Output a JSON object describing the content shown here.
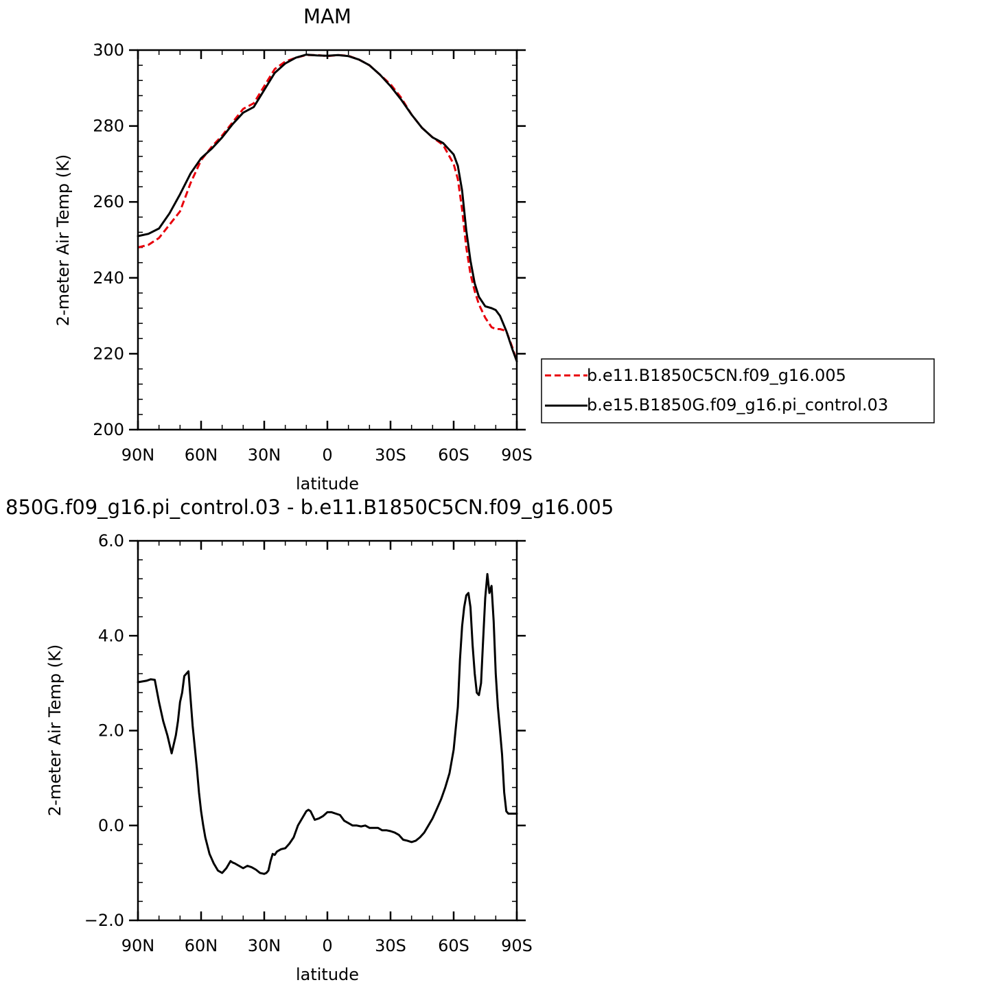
{
  "chart_data": [
    {
      "type": "line",
      "title": "MAM",
      "xlabel": "latitude",
      "ylabel": "2-meter Air Temp (K)",
      "xlim": [
        -90,
        90
      ],
      "ylim": [
        200,
        300
      ],
      "x_ticks": [
        {
          "value": -90,
          "label": "90N"
        },
        {
          "value": -60,
          "label": "60N"
        },
        {
          "value": -30,
          "label": "30N"
        },
        {
          "value": 0,
          "label": "0"
        },
        {
          "value": 30,
          "label": "30S"
        },
        {
          "value": 60,
          "label": "60S"
        },
        {
          "value": 90,
          "label": "90S"
        }
      ],
      "y_ticks": [
        {
          "value": 200,
          "label": "200"
        },
        {
          "value": 220,
          "label": "220"
        },
        {
          "value": 240,
          "label": "240"
        },
        {
          "value": 260,
          "label": "260"
        },
        {
          "value": 280,
          "label": "280"
        },
        {
          "value": 300,
          "label": "300"
        }
      ],
      "legend_position": "right",
      "series": [
        {
          "name": "b.e11.B1850C5CN.f09_g16.005",
          "color": "#e8000b",
          "style": "dashed",
          "x": [
            -90,
            -85,
            -80,
            -75,
            -70,
            -65,
            -60,
            -55,
            -50,
            -45,
            -40,
            -35,
            -30,
            -25,
            -20,
            -15,
            -10,
            -5,
            0,
            5,
            10,
            15,
            20,
            25,
            30,
            35,
            40,
            45,
            50,
            55,
            60,
            62,
            64,
            66,
            68,
            70,
            72,
            75,
            78,
            80,
            82,
            85,
            88,
            90
          ],
          "values": [
            248.0,
            248.7,
            250.5,
            254.0,
            257.5,
            265.0,
            271.0,
            274.5,
            277.5,
            281.0,
            284.5,
            286.0,
            290.5,
            295.0,
            297.0,
            298.0,
            298.7,
            298.7,
            298.4,
            298.7,
            298.5,
            297.5,
            296.0,
            293.5,
            291.0,
            287.5,
            283.0,
            279.5,
            277.0,
            275.0,
            270.0,
            266.0,
            258.0,
            248.0,
            241.0,
            236.5,
            233.0,
            229.5,
            227.0,
            226.5,
            226.5,
            226.0,
            221.5,
            218.0
          ]
        },
        {
          "name": "b.e15.B1850G.f09_g16.pi_control.03",
          "color": "#000000",
          "style": "solid",
          "x": [
            -90,
            -85,
            -80,
            -75,
            -70,
            -65,
            -60,
            -55,
            -50,
            -45,
            -40,
            -35,
            -30,
            -25,
            -20,
            -15,
            -10,
            -5,
            0,
            5,
            10,
            15,
            20,
            25,
            30,
            35,
            40,
            45,
            50,
            55,
            60,
            62,
            64,
            66,
            68,
            70,
            72,
            75,
            78,
            80,
            82,
            85,
            88,
            90
          ],
          "values": [
            251.0,
            251.6,
            253.0,
            257.0,
            262.0,
            267.5,
            271.5,
            274.0,
            277.0,
            280.5,
            283.5,
            285.0,
            289.5,
            294.0,
            296.5,
            298.0,
            298.8,
            298.6,
            298.5,
            298.7,
            298.4,
            297.5,
            296.0,
            293.5,
            290.5,
            287.0,
            283.0,
            279.5,
            277.0,
            275.5,
            272.5,
            269.5,
            263.0,
            252.5,
            244.5,
            238.5,
            235.0,
            232.5,
            232.0,
            231.5,
            230.0,
            226.0,
            221.0,
            218.0
          ]
        }
      ]
    },
    {
      "type": "line",
      "title": "850G.f09_g16.pi_control.03 - b.e11.B1850C5CN.f09_g16.005",
      "xlabel": "latitude",
      "ylabel": "2-meter Air Temp (K)",
      "xlim": [
        -90,
        90
      ],
      "ylim": [
        -2.0,
        6.0
      ],
      "x_ticks": [
        {
          "value": -90,
          "label": "90N"
        },
        {
          "value": -60,
          "label": "60N"
        },
        {
          "value": -30,
          "label": "30N"
        },
        {
          "value": 0,
          "label": "0"
        },
        {
          "value": 30,
          "label": "30S"
        },
        {
          "value": 60,
          "label": "60S"
        },
        {
          "value": 90,
          "label": "90S"
        }
      ],
      "y_ticks": [
        {
          "value": -2.0,
          "label": "−2.0"
        },
        {
          "value": 0.0,
          "label": "0.0"
        },
        {
          "value": 2.0,
          "label": "2.0"
        },
        {
          "value": 4.0,
          "label": "4.0"
        },
        {
          "value": 6.0,
          "label": "6.0"
        }
      ],
      "series": [
        {
          "color": "#000000",
          "style": "solid",
          "x": [
            -90,
            -86,
            -84,
            -82,
            -80,
            -78,
            -76,
            -74,
            -72,
            -71,
            -70,
            -69,
            -68,
            -66,
            -64,
            -62,
            -61,
            -60,
            -59,
            -58,
            -56,
            -54,
            -52,
            -50,
            -48,
            -46,
            -45,
            -44,
            -42,
            -40,
            -38,
            -36,
            -34,
            -32,
            -30,
            -29,
            -28,
            -27,
            -26,
            -25,
            -24,
            -22,
            -20,
            -18,
            -16,
            -14,
            -12,
            -10,
            -9,
            -8,
            -6,
            -4,
            -2,
            0,
            2,
            4,
            6,
            8,
            10,
            12,
            14,
            16,
            18,
            20,
            22,
            24,
            26,
            28,
            30,
            32,
            34,
            36,
            38,
            40,
            42,
            44,
            46,
            48,
            50,
            52,
            54,
            56,
            58,
            60,
            62,
            63,
            64,
            65,
            66,
            67,
            68,
            69,
            70,
            71,
            72,
            73,
            74,
            75,
            76,
            77,
            78,
            79,
            80,
            81,
            82,
            83,
            84,
            85,
            86,
            87,
            88,
            89,
            90
          ],
          "values": [
            3.02,
            3.05,
            3.08,
            3.07,
            2.6,
            2.2,
            1.9,
            1.52,
            1.9,
            2.2,
            2.6,
            2.8,
            3.15,
            3.25,
            2.1,
            1.2,
            0.7,
            0.3,
            0.0,
            -0.25,
            -0.6,
            -0.8,
            -0.95,
            -1.0,
            -0.9,
            -0.75,
            -0.78,
            -0.8,
            -0.85,
            -0.9,
            -0.85,
            -0.88,
            -0.93,
            -1.0,
            -1.02,
            -1.0,
            -0.95,
            -0.75,
            -0.6,
            -0.62,
            -0.55,
            -0.5,
            -0.48,
            -0.38,
            -0.25,
            0.0,
            0.15,
            0.3,
            0.33,
            0.3,
            0.12,
            0.15,
            0.2,
            0.28,
            0.28,
            0.25,
            0.22,
            0.1,
            0.05,
            0.0,
            0.0,
            -0.02,
            0.0,
            -0.05,
            -0.05,
            -0.05,
            -0.1,
            -0.1,
            -0.12,
            -0.15,
            -0.2,
            -0.3,
            -0.32,
            -0.35,
            -0.32,
            -0.25,
            -0.15,
            0.0,
            0.15,
            0.35,
            0.55,
            0.8,
            1.1,
            1.6,
            2.5,
            3.5,
            4.2,
            4.6,
            4.85,
            4.9,
            4.6,
            3.8,
            3.2,
            2.8,
            2.75,
            3.0,
            3.9,
            4.8,
            5.3,
            4.9,
            5.05,
            4.3,
            3.2,
            2.5,
            2.0,
            1.5,
            0.7,
            0.3,
            0.25,
            0.25,
            0.25,
            0.25,
            0.25
          ]
        }
      ]
    }
  ]
}
